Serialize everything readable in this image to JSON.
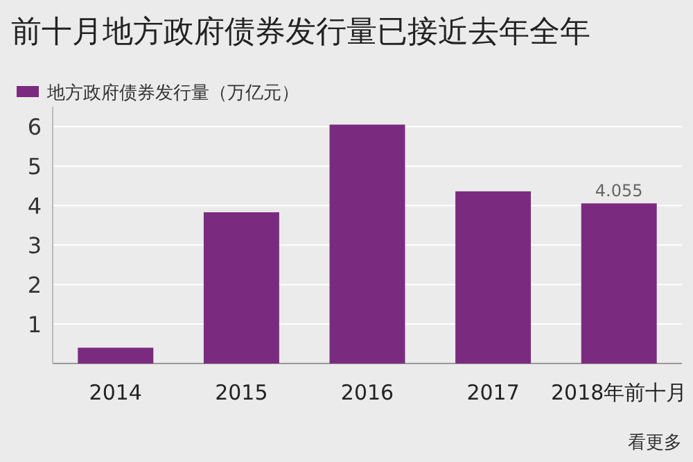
{
  "chart_data": {
    "type": "bar",
    "title": "前十月地方政府债券发行量已接近去年全年",
    "categories": [
      "2014",
      "2015",
      "2016",
      "2017",
      "2018年前十月"
    ],
    "series": [
      {
        "name": "地方政府债券发行量（万亿元）",
        "color": "#7b2b7f",
        "values": [
          0.4,
          3.83,
          6.05,
          4.36,
          4.055
        ]
      }
    ],
    "value_labels": [
      null,
      null,
      null,
      null,
      "4.055"
    ],
    "ylim": [
      0,
      6.5
    ],
    "yticks": [
      1,
      2,
      3,
      4,
      5,
      6
    ],
    "grid": "y",
    "legend": "top left",
    "annotations": [
      "看更多"
    ]
  }
}
